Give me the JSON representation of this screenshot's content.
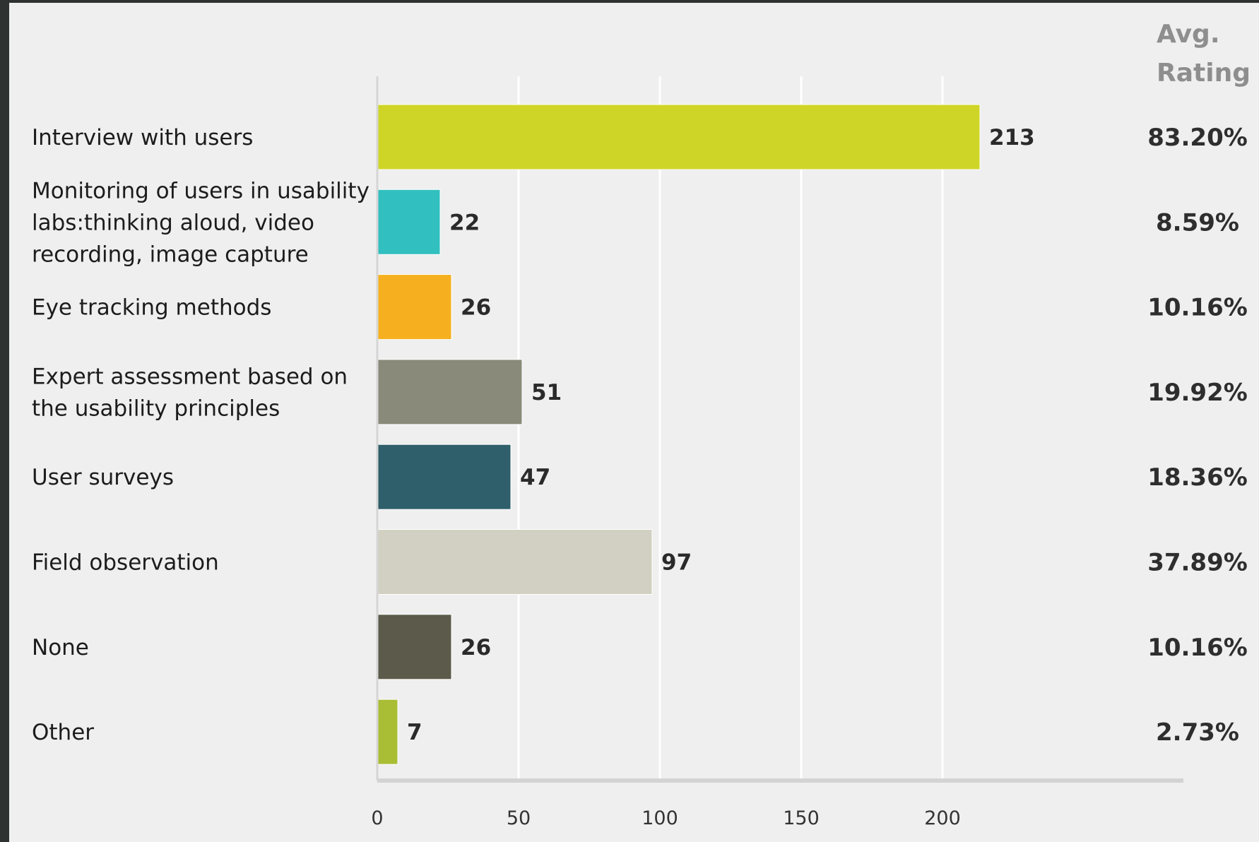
{
  "chart_data": {
    "type": "bar",
    "orientation": "horizontal",
    "categories": [
      [
        "Interview with users"
      ],
      [
        "Monitoring of users in usability",
        "labs:thinking aloud, video",
        "recording, image capture"
      ],
      [
        "Eye tracking methods"
      ],
      [
        "Expert assessment based on",
        "the usability principles"
      ],
      [
        "User surveys"
      ],
      [
        "Field observation"
      ],
      [
        "None"
      ],
      [
        "Other"
      ]
    ],
    "values": [
      213,
      22,
      26,
      51,
      47,
      97,
      26,
      7
    ],
    "value_labels": [
      "213",
      "22",
      "26",
      "51",
      "47",
      "97",
      "26",
      "7"
    ],
    "bar_colors": [
      "#cfd527",
      "#32bfbf",
      "#f6b01f",
      "#8a8a7a",
      "#2e5f6b",
      "#d1d0c2",
      "#5c5a4a",
      "#a9bd35"
    ],
    "rating_header": [
      "Avg.",
      "Rating"
    ],
    "ratings": [
      "83.20%",
      "8.59%",
      "10.16%",
      "19.92%",
      "18.36%",
      "37.89%",
      "10.16%",
      "2.73%"
    ],
    "xticks": [
      0,
      50,
      100,
      150,
      200
    ],
    "xtick_labels": [
      "0",
      "50",
      "100",
      "150",
      "200"
    ],
    "xlim": [
      0,
      250
    ],
    "grid": true,
    "legend": "none"
  }
}
